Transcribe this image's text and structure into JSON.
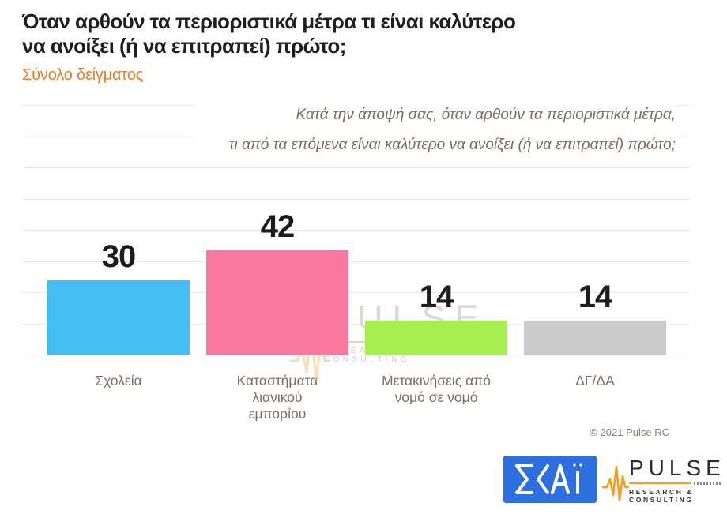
{
  "header": {
    "title_line1": "Όταν αρθούν τα περιοριστικά μέτρα τι είναι καλύτερο",
    "title_line2": "να ανοίξει (ή να επιτραπεί) πρώτο;",
    "subtitle": "Σύνολο δείγματος",
    "subtitle_color": "#e87a25"
  },
  "question": {
    "line1": "Κατά την άποψή σας, όταν αρθούν τα περιοριστικά μέτρα,",
    "line2": "τι από τα επόμενα είναι καλύτερο να ανοίξει (ή να επιτραπεί) πρώτο;"
  },
  "chart_data": {
    "type": "bar",
    "title": "Όταν αρθούν τα περιοριστικά μέτρα τι είναι καλύτερο να ανοίξει (ή να επιτραπεί) πρώτο;",
    "subtitle": "Σύνολο δείγματος",
    "categories": [
      "Σχολεία",
      "Καταστήματα λιανικού εμπορίου",
      "Μετακινήσεις από νομό σε νομό",
      "ΔΓ/ΔΑ"
    ],
    "values": [
      30,
      42,
      14,
      14
    ],
    "colors": [
      "#44bef2",
      "#f878a0",
      "#a7ef4e",
      "#cbcbcb"
    ],
    "xlabel": "",
    "ylabel": "",
    "ylim": [
      0,
      100
    ],
    "gridline_count": 9,
    "grid": true,
    "legend": false,
    "value_labels": true
  },
  "watermark": {
    "brand": "PULSE",
    "tagline": "RESEARCH & CONSULTING"
  },
  "footer": {
    "copyright": "© 2021 Pulse RC",
    "skai_logo_text": "ΣΚΑΪ",
    "pulse_logo_brand": "PULSE",
    "pulse_logo_tagline": "RESEARCH & CONSULTING"
  }
}
